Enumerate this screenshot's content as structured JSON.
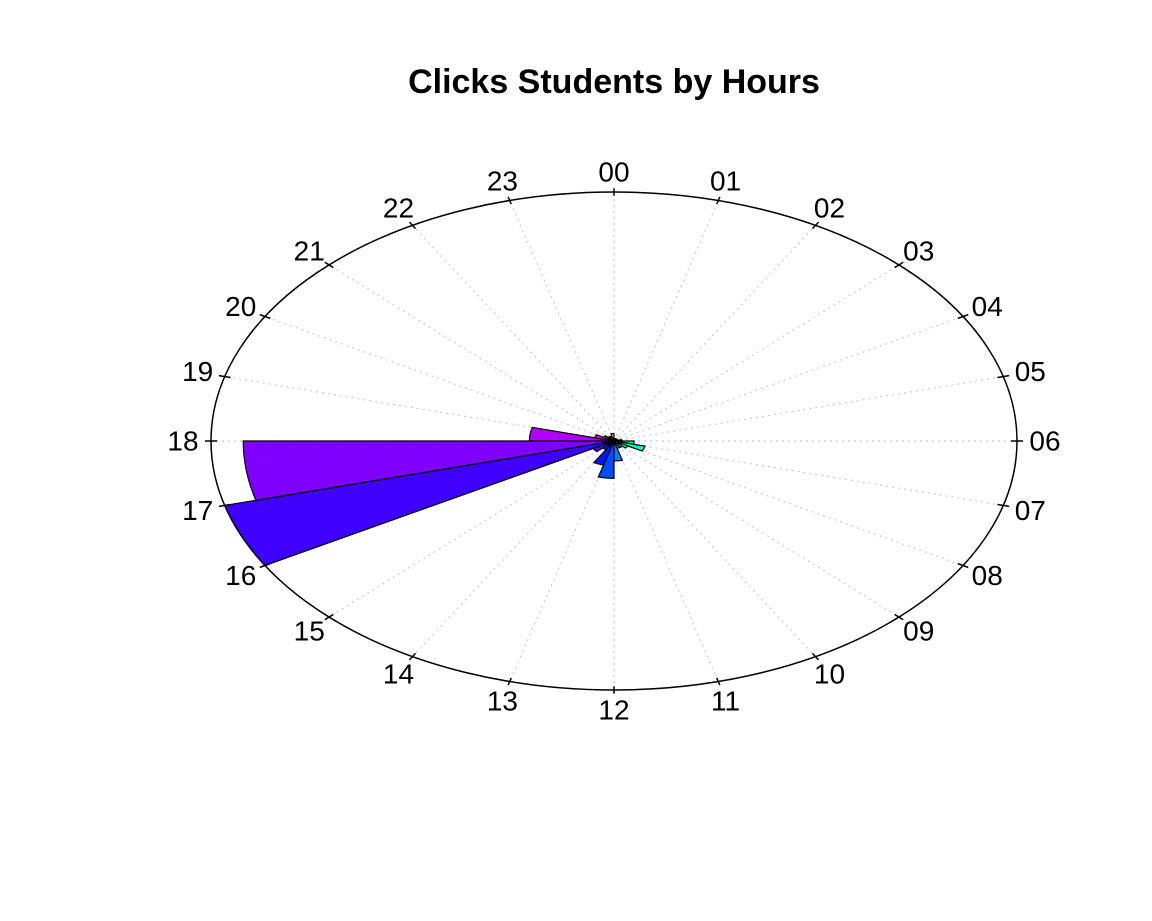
{
  "chart_data": {
    "type": "bar",
    "subtype": "rose",
    "title": "Clicks Students by  Hours",
    "categories": [
      "00",
      "01",
      "02",
      "03",
      "04",
      "05",
      "06",
      "07",
      "08",
      "09",
      "10",
      "11",
      "12",
      "13",
      "14",
      "15",
      "16",
      "17",
      "18",
      "19",
      "20",
      "21",
      "22",
      "23"
    ],
    "values": [
      0.3,
      0.1,
      0.1,
      0.1,
      0.1,
      0.1,
      0.2,
      0.5,
      0.8,
      0.4,
      0.3,
      0.3,
      0.8,
      1.5,
      1.0,
      0.4,
      0.6,
      10.0,
      9.2,
      2.1,
      0.5,
      0.3,
      0.2,
      0.2
    ],
    "rlim": [
      0,
      10
    ],
    "grid": true,
    "legend": "none",
    "colors": [
      "#e6ff00",
      "#b3ff00",
      "#80ff00",
      "#4dff00",
      "#1aff00",
      "#00ff1a",
      "#00ff4d",
      "#00ff80",
      "#00ffb3",
      "#00ffe6",
      "#00e6ff",
      "#00b3ff",
      "#0080ff",
      "#004dff",
      "#001aff",
      "#1a00ff",
      "#4d00ff",
      "#4000ff",
      "#8000ff",
      "#b300ff",
      "#e600ff",
      "#ff00e6",
      "#ff00b3",
      "#ff0080"
    ]
  }
}
